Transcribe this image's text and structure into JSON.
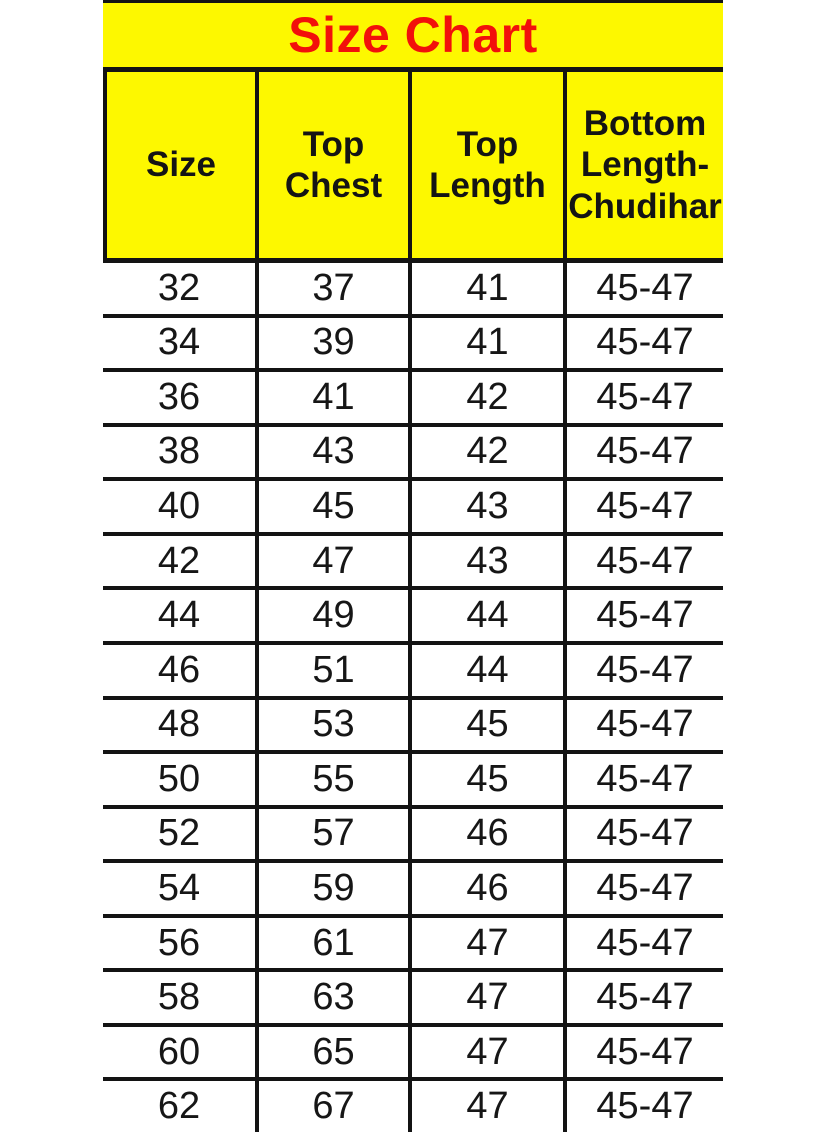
{
  "chart_data": {
    "type": "table",
    "title": "Size Chart",
    "columns": [
      "Size",
      "Top Chest",
      "Top Length",
      "Bottom Length-Chudihar"
    ],
    "rows": [
      [
        "32",
        "37",
        "41",
        "45-47"
      ],
      [
        "34",
        "39",
        "41",
        "45-47"
      ],
      [
        "36",
        "41",
        "42",
        "45-47"
      ],
      [
        "38",
        "43",
        "42",
        "45-47"
      ],
      [
        "40",
        "45",
        "43",
        "45-47"
      ],
      [
        "42",
        "47",
        "43",
        "45-47"
      ],
      [
        "44",
        "49",
        "44",
        "45-47"
      ],
      [
        "46",
        "51",
        "44",
        "45-47"
      ],
      [
        "48",
        "53",
        "45",
        "45-47"
      ],
      [
        "50",
        "55",
        "45",
        "45-47"
      ],
      [
        "52",
        "57",
        "46",
        "45-47"
      ],
      [
        "54",
        "59",
        "46",
        "45-47"
      ],
      [
        "56",
        "61",
        "47",
        "45-47"
      ],
      [
        "58",
        "63",
        "47",
        "45-47"
      ],
      [
        "60",
        "65",
        "47",
        "45-47"
      ],
      [
        "62",
        "67",
        "47",
        "45-47"
      ]
    ],
    "layout": {
      "grid": "on",
      "legend": "none"
    }
  },
  "colors": {
    "band_yellow": "#fdf800",
    "title_red": "#f2100b",
    "grid_black": "#131313",
    "body_background": "#ffffff"
  }
}
